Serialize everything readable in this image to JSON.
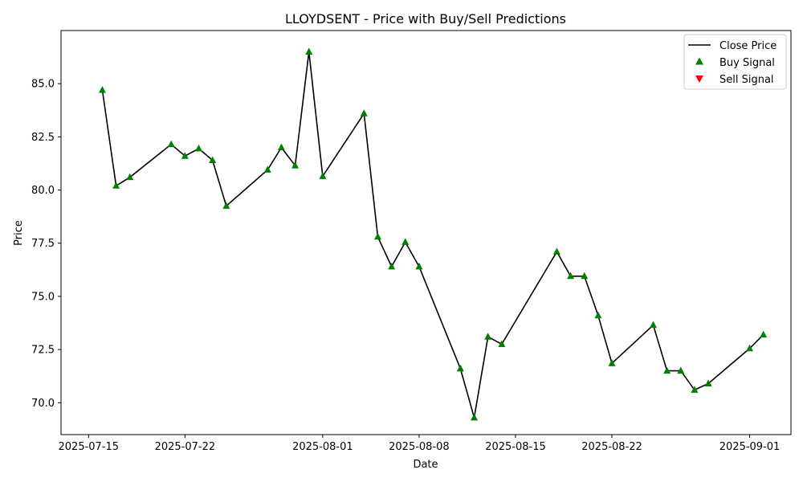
{
  "chart_data": {
    "type": "line",
    "title": "LLOYDSENT - Price with Buy/Sell Predictions",
    "xlabel": "Date",
    "ylabel": "Price",
    "x_ticks": [
      "2025-07-15",
      "2025-07-22",
      "2025-08-01",
      "2025-08-08",
      "2025-08-15",
      "2025-08-22",
      "2025-09-01"
    ],
    "y_ticks": [
      "70.0",
      "72.5",
      "75.0",
      "77.5",
      "80.0",
      "82.5",
      "85.0"
    ],
    "xlim": [
      "2025-07-13",
      "2025-09-04"
    ],
    "ylim": [
      68.5,
      87.5
    ],
    "grid": false,
    "legend_position": "top-right",
    "colors": {
      "line": "#000000",
      "buy": "#008000",
      "sell": "#ff0000"
    },
    "series": [
      {
        "name": "Close Price",
        "kind": "line",
        "x": [
          "2025-07-16",
          "2025-07-17",
          "2025-07-18",
          "2025-07-21",
          "2025-07-22",
          "2025-07-23",
          "2025-07-24",
          "2025-07-25",
          "2025-07-28",
          "2025-07-29",
          "2025-07-30",
          "2025-07-31",
          "2025-08-01",
          "2025-08-04",
          "2025-08-05",
          "2025-08-06",
          "2025-08-07",
          "2025-08-08",
          "2025-08-11",
          "2025-08-12",
          "2025-08-13",
          "2025-08-14",
          "2025-08-18",
          "2025-08-19",
          "2025-08-20",
          "2025-08-21",
          "2025-08-22",
          "2025-08-25",
          "2025-08-26",
          "2025-08-27",
          "2025-08-28",
          "2025-08-29",
          "2025-09-01",
          "2025-09-02"
        ],
        "y": [
          84.7,
          80.2,
          80.6,
          82.15,
          81.6,
          81.95,
          81.4,
          79.25,
          80.95,
          82.0,
          81.15,
          86.5,
          80.65,
          83.6,
          77.8,
          76.4,
          77.55,
          76.4,
          71.6,
          69.3,
          73.1,
          72.75,
          77.1,
          75.95,
          75.95,
          74.1,
          71.85,
          73.65,
          71.5,
          71.5,
          70.6,
          70.9,
          72.55,
          73.2
        ]
      },
      {
        "name": "Buy Signal",
        "kind": "marker-up",
        "x": [
          "2025-07-16",
          "2025-07-17",
          "2025-07-18",
          "2025-07-21",
          "2025-07-22",
          "2025-07-23",
          "2025-07-24",
          "2025-07-25",
          "2025-07-28",
          "2025-07-29",
          "2025-07-30",
          "2025-07-31",
          "2025-08-01",
          "2025-08-04",
          "2025-08-05",
          "2025-08-06",
          "2025-08-07",
          "2025-08-08",
          "2025-08-11",
          "2025-08-12",
          "2025-08-13",
          "2025-08-14",
          "2025-08-18",
          "2025-08-19",
          "2025-08-20",
          "2025-08-21",
          "2025-08-22",
          "2025-08-25",
          "2025-08-26",
          "2025-08-27",
          "2025-08-28",
          "2025-08-29",
          "2025-09-01",
          "2025-09-02"
        ],
        "y": [
          84.7,
          80.2,
          80.6,
          82.15,
          81.6,
          81.95,
          81.4,
          79.25,
          80.95,
          82.0,
          81.15,
          86.5,
          80.65,
          83.6,
          77.8,
          76.4,
          77.55,
          76.4,
          71.6,
          69.3,
          73.1,
          72.75,
          77.1,
          75.95,
          75.95,
          74.1,
          71.85,
          73.65,
          71.5,
          71.5,
          70.6,
          70.9,
          72.55,
          73.2
        ]
      },
      {
        "name": "Sell Signal",
        "kind": "marker-down",
        "x": [],
        "y": []
      }
    ]
  }
}
